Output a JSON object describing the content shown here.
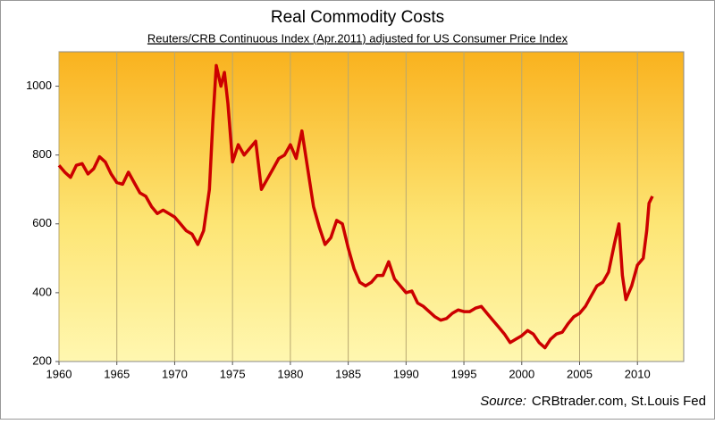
{
  "chart_data": {
    "type": "line",
    "title": "Real Commodity Costs",
    "subtitle": "Reuters/CRB Continuous Index (Apr.2011) adjusted for US Consumer Price Index",
    "source_label": "Source:",
    "source_text": "CRBtrader.com,  St.Louis Fed",
    "x": [
      1960,
      1960.5,
      1961,
      1961.5,
      1962,
      1962.5,
      1963,
      1963.5,
      1964,
      1964.5,
      1965,
      1965.5,
      1966,
      1966.5,
      1967,
      1967.5,
      1968,
      1968.5,
      1969,
      1969.5,
      1970,
      1970.5,
      1971,
      1971.5,
      1972,
      1972.5,
      1973,
      1973.3,
      1973.6,
      1974,
      1974.3,
      1974.6,
      1975,
      1975.5,
      1976,
      1976.5,
      1977,
      1977.5,
      1978,
      1978.5,
      1979,
      1979.5,
      1980,
      1980.5,
      1981,
      1981.5,
      1982,
      1982.5,
      1983,
      1983.5,
      1984,
      1984.5,
      1985,
      1985.5,
      1986,
      1986.5,
      1987,
      1987.5,
      1988,
      1988.5,
      1989,
      1989.5,
      1990,
      1990.5,
      1991,
      1991.5,
      1992,
      1992.5,
      1993,
      1993.5,
      1994,
      1994.5,
      1995,
      1995.5,
      1996,
      1996.5,
      1997,
      1997.5,
      1998,
      1998.5,
      1999,
      1999.5,
      2000,
      2000.5,
      2001,
      2001.5,
      2002,
      2002.5,
      2003,
      2003.5,
      2004,
      2004.5,
      2005,
      2005.5,
      2006,
      2006.5,
      2007,
      2007.5,
      2008,
      2008.4,
      2008.7,
      2009,
      2009.5,
      2010,
      2010.5,
      2010.8,
      2011,
      2011.3
    ],
    "values": [
      770,
      750,
      735,
      770,
      775,
      745,
      760,
      795,
      780,
      745,
      720,
      715,
      750,
      720,
      690,
      680,
      650,
      630,
      640,
      630,
      620,
      600,
      580,
      570,
      540,
      580,
      700,
      900,
      1060,
      1000,
      1040,
      950,
      780,
      830,
      800,
      820,
      840,
      700,
      730,
      760,
      790,
      800,
      830,
      790,
      870,
      760,
      650,
      590,
      540,
      560,
      610,
      600,
      530,
      470,
      430,
      420,
      430,
      450,
      450,
      490,
      440,
      420,
      400,
      405,
      370,
      360,
      345,
      330,
      320,
      325,
      340,
      350,
      345,
      345,
      355,
      360,
      340,
      320,
      300,
      280,
      255,
      265,
      275,
      290,
      280,
      255,
      240,
      265,
      280,
      285,
      310,
      330,
      340,
      360,
      390,
      420,
      430,
      460,
      540,
      600,
      450,
      380,
      420,
      480,
      500,
      580,
      660,
      680
    ],
    "color": "#cc0000",
    "xlim": [
      1960,
      2014
    ],
    "xticks": [
      1960,
      1965,
      1970,
      1975,
      1980,
      1985,
      1990,
      1995,
      2000,
      2005,
      2010
    ],
    "ylim": [
      200,
      1100
    ],
    "yticks": [
      200,
      400,
      600,
      800,
      1000
    ],
    "grid": "x"
  }
}
